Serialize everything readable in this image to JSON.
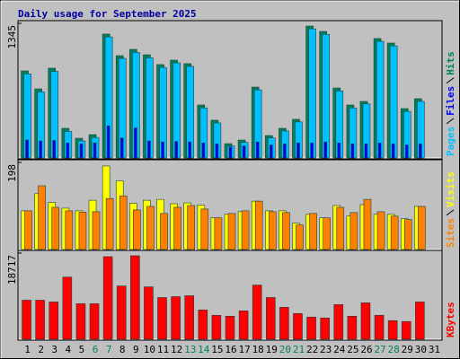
{
  "chart_data": [
    {
      "type": "bar",
      "title": "Daily usage for September 2025",
      "ylim": [
        0,
        1345
      ],
      "yticks": [
        1345
      ],
      "series": [
        {
          "name": "Pages",
          "color": "#00c0ff",
          "values": [
            840,
            660,
            865,
            265,
            170,
            205,
            1210,
            995,
            1055,
            1000,
            905,
            950,
            915,
            500,
            350,
            120,
            155,
            680,
            200,
            270,
            360,
            1290,
            1235,
            670,
            500,
            540,
            1165,
            1120,
            465,
            565,
            null
          ]
        },
        {
          "name": "Files",
          "color": "#0000ff",
          "values": [
            180,
            170,
            175,
            150,
            140,
            150,
            320,
            200,
            300,
            170,
            160,
            165,
            160,
            150,
            140,
            110,
            120,
            160,
            130,
            140,
            150,
            150,
            160,
            150,
            140,
            140,
            150,
            140,
            130,
            140,
            null
          ]
        },
        {
          "name": "Hits",
          "color": "#00805c",
          "values": [
            870,
            690,
            897,
            296,
            197,
            233,
            1238,
            1022,
            1085,
            1031,
            933,
            977,
            942,
            529,
            377,
            143,
            179,
            708,
            224,
            296,
            386,
            1318,
            1264,
            699,
            529,
            565,
            1193,
            1148,
            493,
            592,
            null
          ]
        }
      ]
    },
    {
      "type": "bar",
      "ylim": [
        0,
        198
      ],
      "yticks": [
        198
      ],
      "series": [
        {
          "name": "Sites",
          "color": "#ff8000",
          "values": [
            88,
            145,
            96,
            88,
            85,
            86,
            116,
            122,
            90,
            98,
            82,
            96,
            100,
            92,
            72,
            82,
            88,
            110,
            86,
            84,
            56,
            82,
            72,
            96,
            84,
            114,
            86,
            76,
            68,
            98,
            null
          ]
        },
        {
          "name": "Visits",
          "color": "#ffff00",
          "values": [
            88,
            127,
            107,
            94,
            88,
            112,
            190,
            156,
            105,
            112,
            114,
            104,
            106,
            101,
            72,
            80,
            86,
            110,
            88,
            88,
            60,
            80,
            72,
            100,
            76,
            102,
            80,
            80,
            70,
            98,
            null
          ]
        }
      ]
    },
    {
      "type": "bar",
      "ylim": [
        0,
        18717
      ],
      "yticks": [
        18717
      ],
      "categories": [
        "1",
        "2",
        "3",
        "4",
        "5",
        "6",
        "7",
        "8",
        "9",
        "10",
        "11",
        "12",
        "13",
        "14",
        "15",
        "16",
        "17",
        "18",
        "19",
        "20",
        "21",
        "22",
        "23",
        "24",
        "25",
        "26",
        "27",
        "28",
        "29",
        "30",
        "31"
      ],
      "category_colors": [
        "#000000",
        "#000000",
        "#000000",
        "#000000",
        "#000000",
        "#00805c",
        "#00805c",
        "#000000",
        "#000000",
        "#000000",
        "#000000",
        "#000000",
        "#00805c",
        "#00805c",
        "#000000",
        "#000000",
        "#000000",
        "#000000",
        "#000000",
        "#00805c",
        "#00805c",
        "#000000",
        "#000000",
        "#000000",
        "#000000",
        "#000000",
        "#00805c",
        "#00805c",
        "#000000",
        "#000000",
        "#000000"
      ],
      "series": [
        {
          "name": "KBytes",
          "color": "#ff0000",
          "values": [
            8490,
            8490,
            8100,
            13507,
            7720,
            7720,
            17945,
            11578,
            18138,
            11385,
            9069,
            9262,
            9455,
            6368,
            5210,
            5017,
            6175,
            11770,
            9069,
            6947,
            5596,
            4824,
            4631,
            7526,
            5017,
            7911,
            5210,
            4052,
            3859,
            8104,
            null
          ]
        }
      ]
    }
  ]
}
